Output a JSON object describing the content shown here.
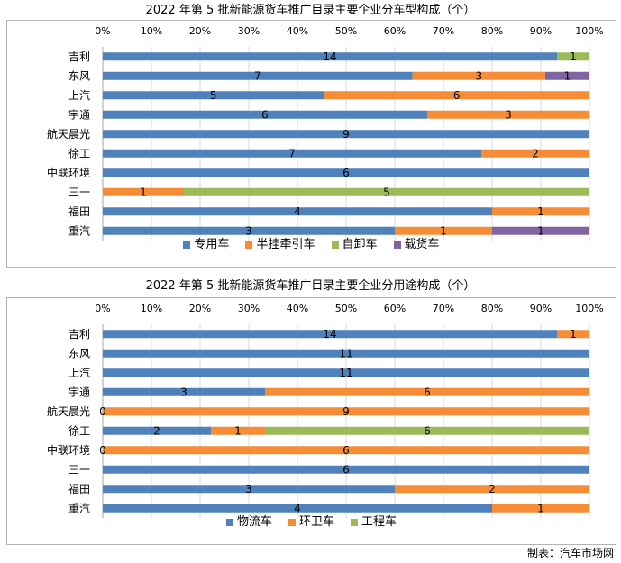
{
  "chart_data": [
    {
      "type": "bar",
      "horizontal": true,
      "stacked_percent": true,
      "title": "2022 年第 5 批新能源货车推广目录主要企业分车型构成（个）",
      "categories": [
        "吉利",
        "东风",
        "上汽",
        "宇通",
        "航天晨光",
        "徐工",
        "中联环境",
        "三一",
        "福田",
        "重汽"
      ],
      "series": [
        {
          "name": "专用车",
          "color": "#4F81BD",
          "values": [
            14,
            7,
            5,
            6,
            9,
            7,
            6,
            null,
            4,
            3
          ]
        },
        {
          "name": "半挂牵引车",
          "color": "#F68C35",
          "values": [
            null,
            3,
            6,
            3,
            null,
            2,
            null,
            1,
            1,
            1
          ]
        },
        {
          "name": "自卸车",
          "color": "#9BBB59",
          "values": [
            1,
            null,
            null,
            null,
            null,
            null,
            null,
            5,
            null,
            null
          ]
        },
        {
          "name": "载货车",
          "color": "#8064A2",
          "values": [
            null,
            1,
            null,
            null,
            null,
            null,
            null,
            null,
            null,
            1
          ]
        }
      ],
      "x_tick_labels": [
        "0%",
        "10%",
        "20%",
        "30%",
        "40%",
        "50%",
        "60%",
        "70%",
        "80%",
        "90%",
        "100%"
      ],
      "xlim": [
        0,
        100
      ],
      "x_axis_position": "top",
      "grid": true,
      "legend": "bottom"
    },
    {
      "type": "bar",
      "horizontal": true,
      "stacked_percent": true,
      "title": "2022 年第 5 批新能源货车推广目录主要企业分用途构成（个）",
      "categories": [
        "吉利",
        "东风",
        "上汽",
        "宇通",
        "航天晨光",
        "徐工",
        "中联环境",
        "三一",
        "福田",
        "重汽"
      ],
      "series": [
        {
          "name": "物流车",
          "color": "#4F81BD",
          "values": [
            14,
            11,
            11,
            3,
            0,
            2,
            0,
            6,
            3,
            4
          ]
        },
        {
          "name": "环卫车",
          "color": "#F68C35",
          "values": [
            1,
            null,
            null,
            6,
            9,
            1,
            6,
            null,
            2,
            1
          ]
        },
        {
          "name": "工程车",
          "color": "#9BBB59",
          "values": [
            null,
            null,
            null,
            null,
            null,
            6,
            null,
            null,
            null,
            null
          ]
        }
      ],
      "x_tick_labels": [
        "0%",
        "10%",
        "20%",
        "30%",
        "40%",
        "50%",
        "60%",
        "70%",
        "80%",
        "90%",
        "100%"
      ],
      "xlim": [
        0,
        100
      ],
      "x_axis_position": "top",
      "grid": true,
      "legend": "bottom"
    }
  ],
  "colors": {
    "gridline": "#D9D9D9",
    "axis": "#A6A6A6"
  },
  "footer": {
    "credit": "制表：汽车市场网"
  }
}
